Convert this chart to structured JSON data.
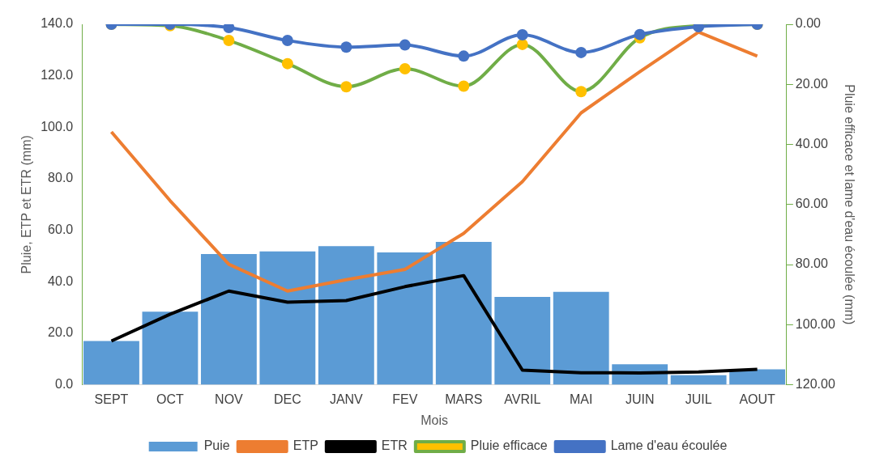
{
  "chart_data": {
    "type": "bar",
    "xlabel": "Mois",
    "ylabel": "Pluie, ETP et ETR (mm)",
    "y2label": "Pluie efficace et lame d'eau écoulée (mm)",
    "categories": [
      "SEPT",
      "OCT",
      "NOV",
      "DEC",
      "JANV",
      "FEV",
      "MARS",
      "AVRIL",
      "MAI",
      "JUIN",
      "JUIL",
      "AOUT"
    ],
    "series": [
      {
        "name": "Puie",
        "color": "#5b9bd5",
        "values": [
          17.0,
          28.4,
          50.8,
          51.8,
          53.8,
          51.4,
          55.5,
          34.1,
          36.1,
          8.0,
          3.7,
          6.0
        ]
      },
      {
        "name": "ETP",
        "type": "line",
        "color": "#ed7d31",
        "marker": "none",
        "values": [
          98.2,
          71.5,
          46.8,
          36.4,
          40.8,
          44.8,
          58.8,
          78.9,
          105.6,
          121.6,
          137.0,
          127.6
        ]
      },
      {
        "name": "ETR",
        "type": "line",
        "color": "#000000",
        "marker": "none",
        "values": [
          17.0,
          27.4,
          36.4,
          32.1,
          32.7,
          38.1,
          42.4,
          5.7,
          4.7,
          4.6,
          5.0,
          6.0
        ]
      },
      {
        "name": "Pluie efficace",
        "type": "line",
        "axis": "y2",
        "color": "#70ad47",
        "marker": "circle",
        "colors": [
          "#ffc000",
          "#ffc000",
          "#ffc000",
          "#ffc000",
          "#ffc000",
          "#ffc000",
          "#ffc000",
          "#ffc000",
          "#ffc000",
          "#ffc000",
          "#ffc000",
          "#ffc000"
        ],
        "values": [
          0,
          0.5,
          5.4,
          13.1,
          20.8,
          14.8,
          20.6,
          6.7,
          22.4,
          4.5,
          0.5,
          0
        ]
      },
      {
        "name": "Lame d'eau écoulée",
        "type": "line",
        "axis": "y2",
        "color": "#4472c4",
        "marker": "circle",
        "values": [
          0,
          0,
          1.1,
          5.4,
          7.6,
          6.9,
          10.6,
          3.5,
          9.4,
          3.4,
          0.8,
          0
        ]
      }
    ],
    "ylim": [
      0,
      140
    ],
    "yticks": [
      {
        "value": 0,
        "label": "0.0"
      },
      {
        "value": 20,
        "label": "20.0"
      },
      {
        "value": 40,
        "label": "40.0"
      },
      {
        "value": 60,
        "label": "60.0"
      },
      {
        "value": 80,
        "label": "80.0"
      },
      {
        "value": 100,
        "label": "100.0"
      },
      {
        "value": 120,
        "label": "120.0"
      },
      {
        "value": 140,
        "label": "140.0"
      }
    ],
    "y2lim": [
      120,
      0
    ],
    "y2ticks": [
      {
        "value": 0,
        "label": "0.00"
      },
      {
        "value": 20,
        "label": "20.00"
      },
      {
        "value": 40,
        "label": "40.00"
      },
      {
        "value": 60,
        "label": "60.00"
      },
      {
        "value": 80,
        "label": "80.00"
      },
      {
        "value": 100,
        "label": "100.00"
      },
      {
        "value": 120,
        "label": "120.00"
      }
    ],
    "grid": false,
    "legend": "bottom"
  }
}
